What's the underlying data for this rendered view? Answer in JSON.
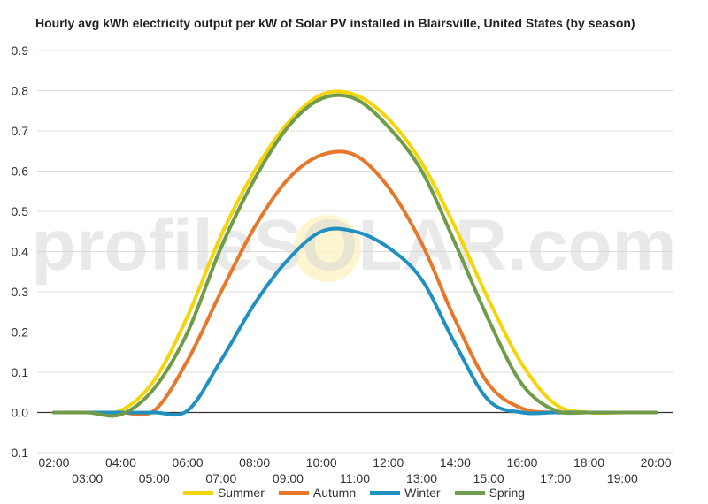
{
  "chart_data": {
    "type": "line",
    "title": "Hourly avg kWh electricity output per kW of Solar PV installed in Blairsville, United States (by season)",
    "watermark": "profileSOLAR.com",
    "x": [
      "02:00",
      "03:00",
      "04:00",
      "05:00",
      "06:00",
      "07:00",
      "08:00",
      "09:00",
      "10:00",
      "11:00",
      "12:00",
      "13:00",
      "14:00",
      "15:00",
      "16:00",
      "17:00",
      "18:00",
      "19:00",
      "20:00"
    ],
    "ylim": [
      -0.1,
      0.9
    ],
    "yticks": [
      "-0.1",
      "0.0",
      "0.1",
      "0.2",
      "0.3",
      "0.4",
      "0.5",
      "0.6",
      "0.7",
      "0.8",
      "0.9"
    ],
    "grid": true,
    "legend_position": "bottom",
    "series": [
      {
        "name": "Summer",
        "color": "#f5d50a",
        "values": [
          0,
          0,
          0.005,
          0.08,
          0.24,
          0.44,
          0.6,
          0.72,
          0.79,
          0.79,
          0.73,
          0.62,
          0.46,
          0.28,
          0.12,
          0.02,
          0,
          0,
          0
        ]
      },
      {
        "name": "Autumn",
        "color": "#e5782a",
        "values": [
          0,
          0,
          0,
          0.005,
          0.13,
          0.3,
          0.46,
          0.58,
          0.64,
          0.64,
          0.56,
          0.42,
          0.23,
          0.07,
          0.01,
          0,
          0,
          0,
          0
        ]
      },
      {
        "name": "Winter",
        "color": "#2090c0",
        "values": [
          0,
          0,
          0,
          0,
          0.005,
          0.13,
          0.27,
          0.38,
          0.45,
          0.45,
          0.41,
          0.33,
          0.17,
          0.03,
          0,
          0,
          0,
          0,
          0
        ]
      },
      {
        "name": "Spring",
        "color": "#6f9b4a",
        "values": [
          0,
          0,
          -0.005,
          0.06,
          0.2,
          0.41,
          0.58,
          0.71,
          0.78,
          0.78,
          0.71,
          0.6,
          0.42,
          0.23,
          0.07,
          0.005,
          0,
          0,
          0
        ]
      }
    ]
  }
}
